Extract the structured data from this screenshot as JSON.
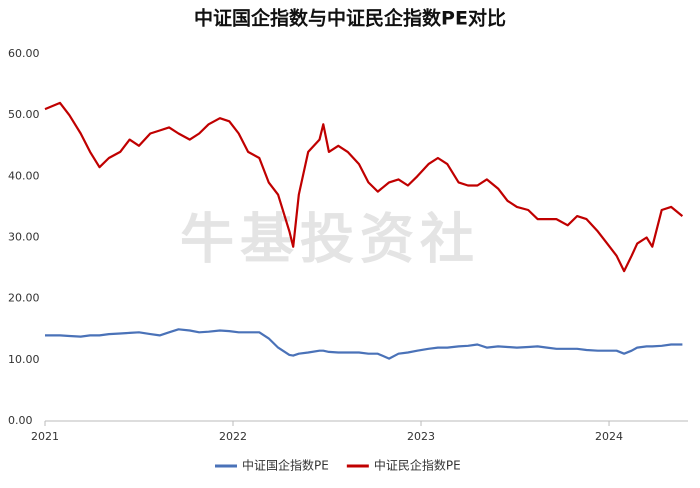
{
  "chart_data": {
    "type": "line",
    "title": "中证国企指数与中证民企指数PE对比",
    "watermark": "牛基投资社",
    "x": [
      2021.0,
      2021.08,
      2021.13,
      2021.19,
      2021.24,
      2021.29,
      2021.34,
      2021.4,
      2021.45,
      2021.5,
      2021.56,
      2021.61,
      2021.66,
      2021.71,
      2021.77,
      2021.82,
      2021.87,
      2021.93,
      2021.98,
      2022.03,
      2022.08,
      2022.14,
      2022.19,
      2022.24,
      2022.3,
      2022.32,
      2022.35,
      2022.4,
      2022.46,
      2022.48,
      2022.51,
      2022.56,
      2022.61,
      2022.67,
      2022.72,
      2022.77,
      2022.83,
      2022.88,
      2022.93,
      2022.98,
      2023.04,
      2023.09,
      2023.14,
      2023.2,
      2023.25,
      2023.3,
      2023.35,
      2023.41,
      2023.46,
      2023.51,
      2023.57,
      2023.62,
      2023.67,
      2023.72,
      2023.78,
      2023.83,
      2023.88,
      2023.94,
      2023.99,
      2024.04,
      2024.08,
      2024.12,
      2024.15,
      2024.2,
      2024.23,
      2024.28,
      2024.33,
      2024.39
    ],
    "series": [
      {
        "name": "中证国企指数PE",
        "color": "#4a72b8",
        "values": [
          14,
          14,
          13.9,
          13.8,
          14,
          14,
          14.2,
          14.3,
          14.4,
          14.5,
          14.2,
          14,
          14.5,
          15,
          14.8,
          14.5,
          14.6,
          14.8,
          14.7,
          14.5,
          14.5,
          14.5,
          13.5,
          12,
          10.8,
          10.7,
          11,
          11.2,
          11.5,
          11.5,
          11.3,
          11.2,
          11.2,
          11.2,
          11,
          11,
          10.2,
          11,
          11.2,
          11.5,
          11.8,
          12,
          12,
          12.2,
          12.3,
          12.5,
          12,
          12.2,
          12.1,
          12,
          12.1,
          12.2,
          12,
          11.8,
          11.8,
          11.8,
          11.6,
          11.5,
          11.5,
          11.5,
          11,
          11.5,
          12,
          12.2,
          12.2,
          12.3,
          12.5,
          12.5
        ]
      },
      {
        "name": "中证民企指数PE",
        "color": "#c00000",
        "values": [
          51,
          52,
          50,
          47,
          44,
          41.5,
          43,
          44,
          46,
          45,
          47,
          47.5,
          48,
          47,
          46,
          47,
          48.5,
          49.5,
          49,
          47,
          44,
          43,
          39,
          37,
          31,
          28.5,
          37,
          44,
          46,
          48.5,
          44,
          45,
          44,
          42,
          39,
          37.5,
          39,
          39.5,
          38.5,
          40,
          42,
          43,
          42,
          39,
          38.5,
          38.5,
          39.5,
          38,
          36,
          35,
          34.5,
          33,
          33,
          33,
          32,
          33.5,
          33,
          31,
          29,
          27,
          24.5,
          27,
          29,
          30,
          28.5,
          34.5,
          35,
          33.5
        ]
      }
    ],
    "xlim": [
      2021,
      2024.42
    ],
    "xticks": [
      2021,
      2022,
      2023,
      2024
    ],
    "ylim": [
      0,
      60
    ],
    "yticks": [
      {
        "value": 0,
        "label": "0.00"
      },
      {
        "value": 10,
        "label": "10.00"
      },
      {
        "value": 20,
        "label": "20.00"
      },
      {
        "value": 30,
        "label": "30.00"
      },
      {
        "value": 40,
        "label": "40.00"
      },
      {
        "value": 50,
        "label": "50.00"
      },
      {
        "value": 60,
        "label": "60.00"
      }
    ],
    "grid": false
  }
}
